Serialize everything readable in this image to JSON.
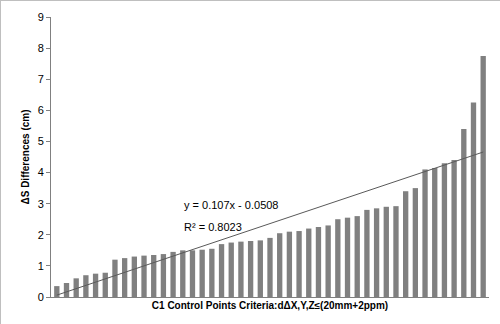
{
  "chart_data": {
    "type": "bar",
    "x_label": "C1 Control Points Criteria:dΔX,Y,Z≤(20mm+2ppm)",
    "y_label": "ΔS Differences (cm)",
    "categories": [
      null,
      null,
      null,
      null,
      null,
      null,
      null,
      null,
      null,
      null,
      null,
      null,
      null,
      null,
      null,
      null,
      null,
      null,
      null,
      null,
      null,
      null,
      null,
      null,
      null,
      null,
      null,
      null,
      null,
      null,
      null,
      null,
      null,
      null,
      null,
      null,
      null,
      null,
      null,
      null,
      null,
      null,
      null,
      null,
      null
    ],
    "values": [
      0.35,
      0.45,
      0.6,
      0.7,
      0.75,
      0.78,
      1.2,
      1.25,
      1.3,
      1.33,
      1.35,
      1.38,
      1.45,
      1.5,
      1.5,
      1.52,
      1.55,
      1.7,
      1.75,
      1.78,
      1.8,
      1.82,
      1.9,
      2.05,
      2.1,
      2.12,
      2.2,
      2.25,
      2.3,
      2.5,
      2.55,
      2.6,
      2.8,
      2.85,
      2.9,
      2.92,
      3.4,
      3.5,
      4.1,
      4.15,
      4.3,
      4.4,
      5.4,
      6.25,
      7.75
    ],
    "color": "#808080",
    "trendline": {
      "x": [
        0,
        44
      ],
      "y": [
        0.06,
        4.66
      ],
      "color": "#595959"
    },
    "annotations": [
      "y = 0.107x - 0.0508",
      "R² = 0.8023"
    ],
    "ylim": [
      0,
      9
    ],
    "yticks": [
      0,
      1,
      2,
      3,
      4,
      5,
      6,
      7,
      8,
      9
    ],
    "grid": false,
    "tick_labels": "y"
  }
}
